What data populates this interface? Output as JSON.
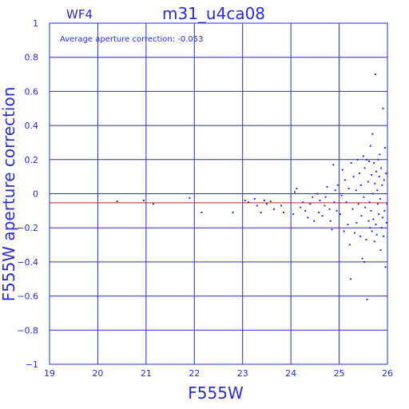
{
  "chart_data": {
    "type": "scatter",
    "panel_label": "WF4",
    "title": "m31_u4ca08",
    "annotation": "Average aperture correction: -0.053",
    "xlabel": "F555W",
    "ylabel": "F555W aperture correction",
    "xlim": [
      19,
      26
    ],
    "ylim": [
      -1,
      1
    ],
    "x_ticks": [
      19,
      20,
      21,
      22,
      23,
      24,
      25,
      26
    ],
    "y_ticks": [
      1,
      0.8,
      0.6,
      0.4,
      0.2,
      0,
      -0.2,
      -0.4,
      -0.6,
      -0.8,
      -1
    ],
    "y_tick_labels": [
      "1",
      "0.8",
      "0.6",
      "0.4",
      "0.2",
      "0",
      "−0.2",
      "−0.4",
      "−0.6",
      "−0.8",
      "−1"
    ],
    "grid": true,
    "reference_lines": [
      {
        "y": 0,
        "color": "#2b2bd6"
      },
      {
        "y": -0.053,
        "color": "#cc2222"
      }
    ],
    "colors": {
      "axis": "#2b2bd6",
      "points": "#2b2bd6",
      "mean_line": "#cc2222"
    },
    "series": [
      {
        "values": [
          [
            20.4,
            -0.045
          ],
          [
            20.95,
            -0.04
          ],
          [
            21.15,
            -0.06
          ],
          [
            21.9,
            -0.025
          ],
          [
            22.15,
            -0.11
          ],
          [
            22.8,
            -0.11
          ],
          [
            23.05,
            -0.04
          ],
          [
            23.12,
            -0.05
          ],
          [
            23.25,
            -0.03
          ],
          [
            23.3,
            -0.07
          ],
          [
            23.38,
            -0.11
          ],
          [
            23.45,
            -0.04
          ],
          [
            23.5,
            -0.06
          ],
          [
            23.58,
            -0.045
          ],
          [
            23.65,
            -0.09
          ],
          [
            23.8,
            -0.07
          ],
          [
            23.85,
            -0.11
          ],
          [
            24.05,
            -0.12
          ],
          [
            24.08,
            0.01
          ],
          [
            24.12,
            0.03
          ],
          [
            24.2,
            -0.08
          ],
          [
            24.25,
            -0.05
          ],
          [
            24.3,
            -0.1
          ],
          [
            24.35,
            -0.14
          ],
          [
            24.4,
            -0.06
          ],
          [
            24.45,
            -0.02
          ],
          [
            24.48,
            -0.16
          ],
          [
            24.55,
            0.0
          ],
          [
            24.58,
            -0.11
          ],
          [
            24.6,
            -0.04
          ],
          [
            24.65,
            -0.13
          ],
          [
            24.7,
            -0.07
          ],
          [
            24.72,
            -0.02
          ],
          [
            24.75,
            0.04
          ],
          [
            24.8,
            -0.09
          ],
          [
            24.82,
            -0.16
          ],
          [
            24.85,
            -0.21
          ],
          [
            24.88,
            0.17
          ],
          [
            24.9,
            -0.05
          ],
          [
            24.92,
            0.02
          ],
          [
            24.95,
            -0.1
          ],
          [
            24.97,
            0.05
          ],
          [
            25.02,
            -0.12
          ],
          [
            25.05,
            -0.01
          ],
          [
            25.07,
            0.14
          ],
          [
            25.1,
            -0.22
          ],
          [
            25.12,
            0.08
          ],
          [
            25.15,
            -0.05
          ],
          [
            25.18,
            -0.18
          ],
          [
            25.2,
            0.03
          ],
          [
            25.22,
            -0.3
          ],
          [
            25.24,
            -0.5
          ],
          [
            25.25,
            0.18
          ],
          [
            25.28,
            -0.09
          ],
          [
            25.3,
            0.1
          ],
          [
            25.32,
            -0.23
          ],
          [
            25.35,
            0.02
          ],
          [
            25.36,
            -0.17
          ],
          [
            25.38,
            0.2
          ],
          [
            25.4,
            -0.06
          ],
          [
            25.42,
            0.12
          ],
          [
            25.44,
            -0.25
          ],
          [
            25.45,
            0.05
          ],
          [
            25.46,
            -0.13
          ],
          [
            25.48,
            -0.38
          ],
          [
            25.5,
            0.22
          ],
          [
            25.51,
            -0.02
          ],
          [
            25.52,
            -0.4
          ],
          [
            25.53,
            0.15
          ],
          [
            25.54,
            -0.08
          ],
          [
            25.56,
            -0.27
          ],
          [
            25.57,
            0.2
          ],
          [
            25.58,
            -0.62
          ],
          [
            25.6,
            0.07
          ],
          [
            25.61,
            -0.16
          ],
          [
            25.62,
            0.19
          ],
          [
            25.63,
            -0.05
          ],
          [
            25.64,
            -0.2
          ],
          [
            25.65,
            0.28
          ],
          [
            25.66,
            -0.1
          ],
          [
            25.67,
            0.11
          ],
          [
            25.68,
            -0.22
          ],
          [
            25.69,
            0.35
          ],
          [
            25.7,
            0.0
          ],
          [
            25.71,
            -0.15
          ],
          [
            25.72,
            0.18
          ],
          [
            25.73,
            -0.28
          ],
          [
            25.74,
            0.06
          ],
          [
            25.75,
            0.7
          ],
          [
            25.76,
            -0.18
          ],
          [
            25.77,
            0.13
          ],
          [
            25.78,
            -0.24
          ],
          [
            25.79,
            0.02
          ],
          [
            25.8,
            -0.06
          ],
          [
            25.81,
            0.2
          ],
          [
            25.82,
            -0.12
          ],
          [
            25.83,
            0.1
          ],
          [
            25.84,
            0.23
          ],
          [
            25.85,
            -0.03
          ],
          [
            25.86,
            -0.33
          ],
          [
            25.87,
            0.15
          ],
          [
            25.88,
            -0.2
          ],
          [
            25.89,
            0.05
          ],
          [
            25.9,
            -0.14
          ],
          [
            25.91,
            0.5
          ],
          [
            25.92,
            -0.25
          ],
          [
            25.93,
            0.08
          ],
          [
            25.94,
            -0.1
          ],
          [
            25.95,
            0.27
          ],
          [
            25.96,
            -0.43
          ],
          [
            25.97,
            0.12
          ],
          [
            25.98,
            -0.17
          ],
          [
            25.99,
            -0.06
          ]
        ]
      }
    ]
  }
}
